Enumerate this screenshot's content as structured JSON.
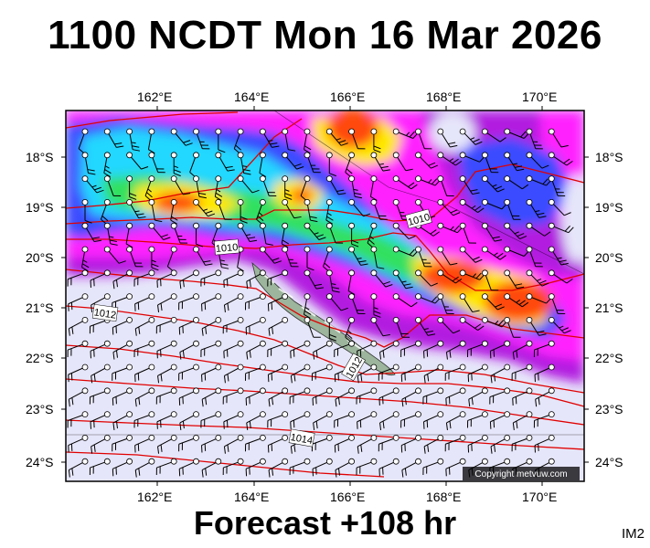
{
  "title": "1100 NCDT Mon 16 Mar 2026",
  "forecast_label": "Forecast +108 hr",
  "image_tag": "IM2",
  "copyright": "Copyright metvuw.com",
  "lon_labels": [
    "162°E",
    "164°E",
    "166°E",
    "168°E",
    "170°E"
  ],
  "lat_labels": [
    "18°S",
    "19°S",
    "20°S",
    "21°S",
    "22°S",
    "23°S",
    "24°S"
  ],
  "isobar_labels": [
    "1010",
    "1010",
    "1012",
    "1012",
    "1014"
  ],
  "colors": {
    "calm": "#e6e6fa",
    "purple": "#b21fe0",
    "magenta": "#ff22ff",
    "blue": "#3a4bff",
    "cyan": "#22d8ff",
    "green": "#33e060",
    "yellow": "#ffe800",
    "orange": "#ff4a10",
    "isobar": "#e00000",
    "land": "#9cb59c"
  }
}
